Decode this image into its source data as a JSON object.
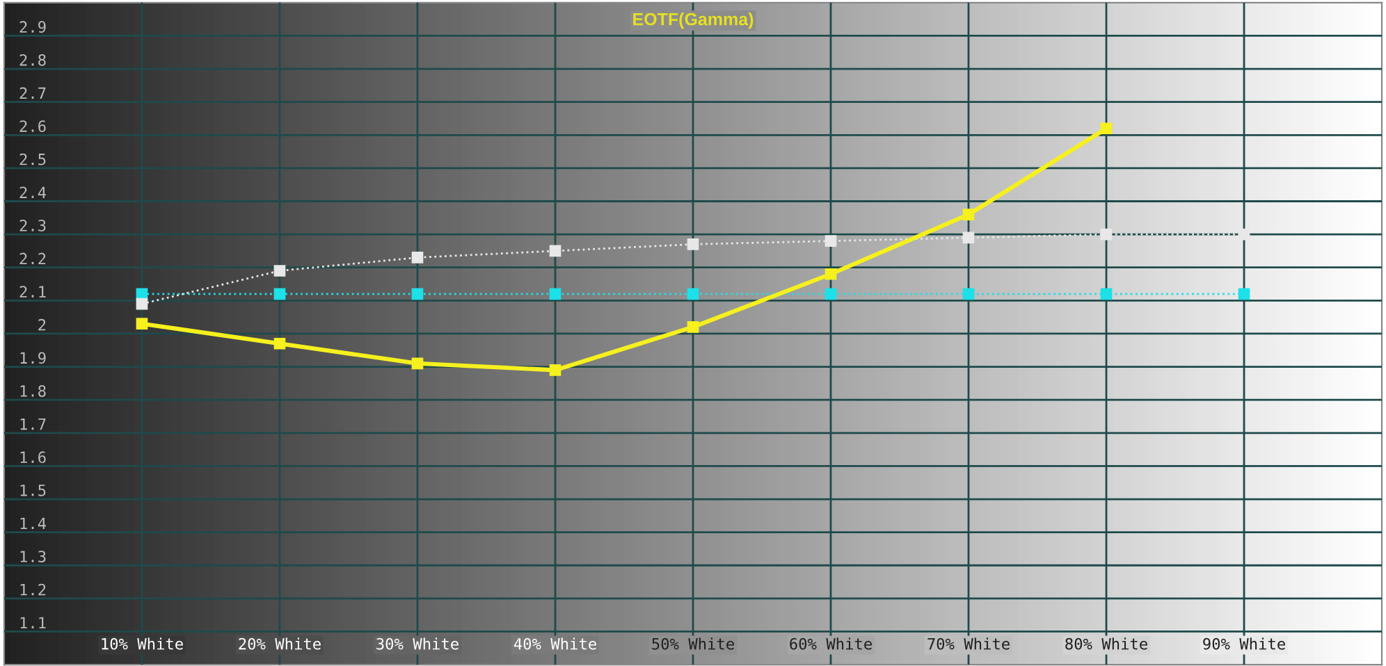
{
  "chart_data": {
    "type": "line",
    "title": "EOTF(Gamma)",
    "x": [
      10,
      20,
      30,
      40,
      50,
      60,
      70,
      80,
      90
    ],
    "xlim": [
      0,
      100
    ],
    "xticks": [
      {
        "value": 10,
        "label": "10% White"
      },
      {
        "value": 20,
        "label": "20% White"
      },
      {
        "value": 30,
        "label": "30% White"
      },
      {
        "value": 40,
        "label": "40% White"
      },
      {
        "value": 50,
        "label": "50% White"
      },
      {
        "value": 60,
        "label": "60% White"
      },
      {
        "value": 70,
        "label": "70% White"
      },
      {
        "value": 80,
        "label": "80% White"
      },
      {
        "value": 90,
        "label": "90% White"
      }
    ],
    "ylim": [
      1.0,
      3.0
    ],
    "yticks": [
      1.1,
      1.2,
      1.3,
      1.4,
      1.5,
      1.6,
      1.7,
      1.8,
      1.9,
      2,
      2.1,
      2.2,
      2.3,
      2.4,
      2.5,
      2.6,
      2.7,
      2.8,
      2.9
    ],
    "grid": true,
    "marker": "square",
    "series": [
      {
        "color": "#1ee0e8",
        "line_style": "dotted",
        "values": [
          2.12,
          2.12,
          2.12,
          2.12,
          2.12,
          2.12,
          2.12,
          2.12,
          2.12
        ]
      },
      {
        "color": "#e8e8e8",
        "line_style": "dotted",
        "values": [
          2.09,
          2.19,
          2.23,
          2.25,
          2.27,
          2.28,
          2.29,
          2.3,
          2.3
        ]
      },
      {
        "color": "#f5f01e",
        "line_style": "solid",
        "values": [
          2.03,
          1.97,
          1.91,
          1.89,
          2.02,
          2.18,
          2.36,
          2.62,
          null
        ]
      }
    ]
  }
}
